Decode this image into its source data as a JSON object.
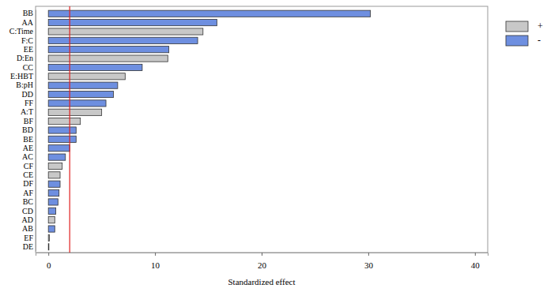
{
  "chart_data": {
    "type": "bar",
    "orientation": "horizontal",
    "stacked": false,
    "x_label": "Standardized effect",
    "categories": [
      "BB",
      "AA",
      "C:Time",
      "F:C",
      "EE",
      "D:En",
      "CC",
      "E:HBT",
      "B:pH",
      "DD",
      "FF",
      "A:T",
      "BF",
      "BD",
      "BE",
      "AE",
      "AC",
      "CF",
      "CE",
      "DF",
      "AF",
      "BC",
      "CD",
      "AD",
      "AB",
      "EF",
      "DE"
    ],
    "series": [
      {
        "name": "+",
        "color": "#c8c8c8",
        "values": [
          null,
          null,
          14.5,
          null,
          null,
          11.2,
          null,
          7.2,
          null,
          null,
          null,
          5.0,
          3.0,
          null,
          null,
          null,
          null,
          1.3,
          1.1,
          null,
          null,
          null,
          null,
          0.6,
          null,
          0.1,
          0.05
        ]
      },
      {
        "name": "-",
        "color": "#6e8fe0",
        "values": [
          30.2,
          15.8,
          null,
          14.0,
          11.3,
          null,
          8.8,
          null,
          6.5,
          6.1,
          5.4,
          null,
          null,
          2.6,
          2.6,
          2.0,
          1.6,
          null,
          null,
          1.1,
          1.0,
          0.9,
          0.7,
          null,
          0.6,
          null,
          null
        ]
      }
    ],
    "reference_line": 2.0,
    "reference_color": "#e02020",
    "xlim": [
      -1.2,
      41.2
    ],
    "xticks": [
      0,
      10,
      20,
      30,
      40
    ],
    "grid": false,
    "legend": "upper right"
  }
}
